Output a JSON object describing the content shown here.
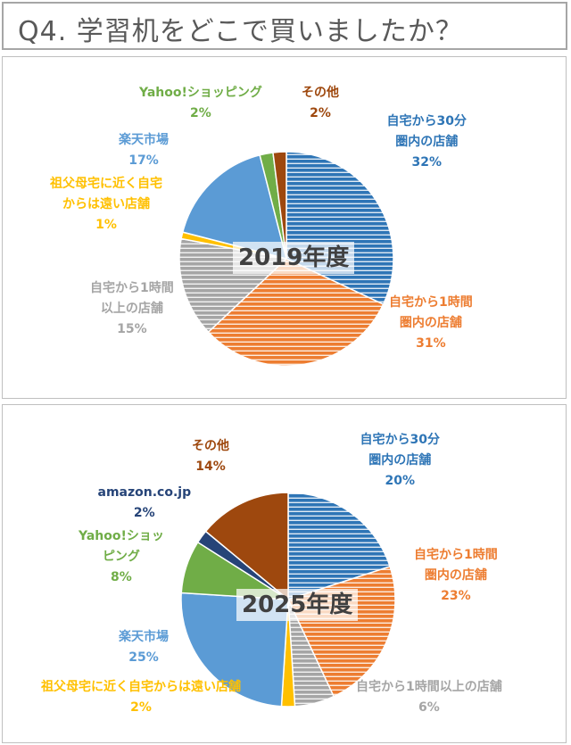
{
  "page": {
    "title": "Q4. 学習机をどこで買いましたか？"
  },
  "chart_data": [
    {
      "type": "pie",
      "title": "2019年度",
      "slices": [
        {
          "label": "自宅から30分 圏内の店舗",
          "name_lines": [
            "自宅から30分",
            "圏内の店舗"
          ],
          "value": 32,
          "pct_label": "32%",
          "color": "#2e75b6",
          "pattern": "stripes",
          "text_color": "#2e75b6"
        },
        {
          "label": "自宅から1時間 圏内の店舗",
          "name_lines": [
            "自宅から1時間",
            "圏内の店舗"
          ],
          "value": 31,
          "pct_label": "31%",
          "color": "#ed7d31",
          "pattern": "stripes",
          "text_color": "#ed7d31"
        },
        {
          "label": "自宅から1時間 以上の店舗",
          "name_lines": [
            "自宅から1時間",
            "以上の店舗"
          ],
          "value": 15,
          "pct_label": "15%",
          "color": "#a5a5a5",
          "pattern": "stripes",
          "text_color": "#a5a5a5"
        },
        {
          "label": "祖父母宅に近く自宅 からは遠い店舗",
          "name_lines": [
            "祖父母宅に近く自宅",
            "からは遠い店舗"
          ],
          "value": 1,
          "pct_label": "1%",
          "color": "#ffc000",
          "pattern": "solid",
          "text_color": "#ffc000"
        },
        {
          "label": "楽天市場",
          "name_lines": [
            "楽天市場"
          ],
          "value": 17,
          "pct_label": "17%",
          "color": "#5b9bd5",
          "pattern": "solid",
          "text_color": "#5b9bd5"
        },
        {
          "label": "Yahoo!ショッピング",
          "name_lines": [
            "Yahoo!ショッピング"
          ],
          "value": 2,
          "pct_label": "2%",
          "color": "#70ad47",
          "pattern": "solid",
          "text_color": "#70ad47"
        },
        {
          "label": "その他",
          "name_lines": [
            "その他"
          ],
          "value": 2,
          "pct_label": "2%",
          "color": "#9e480e",
          "pattern": "solid",
          "text_color": "#9e480e"
        }
      ]
    },
    {
      "type": "pie",
      "title": "2025年度",
      "slices": [
        {
          "label": "自宅から30分 圏内の店舗",
          "name_lines": [
            "自宅から30分",
            "圏内の店舗"
          ],
          "value": 20,
          "pct_label": "20%",
          "color": "#2e75b6",
          "pattern": "stripes",
          "text_color": "#2e75b6"
        },
        {
          "label": "自宅から1時間 圏内の店舗",
          "name_lines": [
            "自宅から1時間",
            "圏内の店舗"
          ],
          "value": 23,
          "pct_label": "23%",
          "color": "#ed7d31",
          "pattern": "stripes",
          "text_color": "#ed7d31"
        },
        {
          "label": "自宅から1時間以上の店舗",
          "name_lines": [
            "自宅から1時間以上の店舗"
          ],
          "value": 6,
          "pct_label": "6%",
          "color": "#a5a5a5",
          "pattern": "stripes",
          "text_color": "#a5a5a5"
        },
        {
          "label": "祖父母宅に近く自宅からは遠い店舗",
          "name_lines": [
            "祖父母宅に近く自宅からは遠い店舗"
          ],
          "value": 2,
          "pct_label": "2%",
          "color": "#ffc000",
          "pattern": "solid",
          "text_color": "#ffc000"
        },
        {
          "label": "楽天市場",
          "name_lines": [
            "楽天市場"
          ],
          "value": 25,
          "pct_label": "25%",
          "color": "#5b9bd5",
          "pattern": "solid",
          "text_color": "#5b9bd5"
        },
        {
          "label": "Yahoo!ショッ ピング",
          "name_lines": [
            "Yahoo!ショッ",
            "ピング"
          ],
          "value": 8,
          "pct_label": "8%",
          "color": "#70ad47",
          "pattern": "solid",
          "text_color": "#70ad47"
        },
        {
          "label": "amazon.co.jp",
          "name_lines": [
            "amazon.co.jp"
          ],
          "value": 2,
          "pct_label": "2%",
          "color": "#264478",
          "pattern": "solid",
          "text_color": "#264478"
        },
        {
          "label": "その他",
          "name_lines": [
            "その他"
          ],
          "value": 14,
          "pct_label": "14%",
          "color": "#9e480e",
          "pattern": "solid",
          "text_color": "#9e480e"
        }
      ]
    }
  ]
}
